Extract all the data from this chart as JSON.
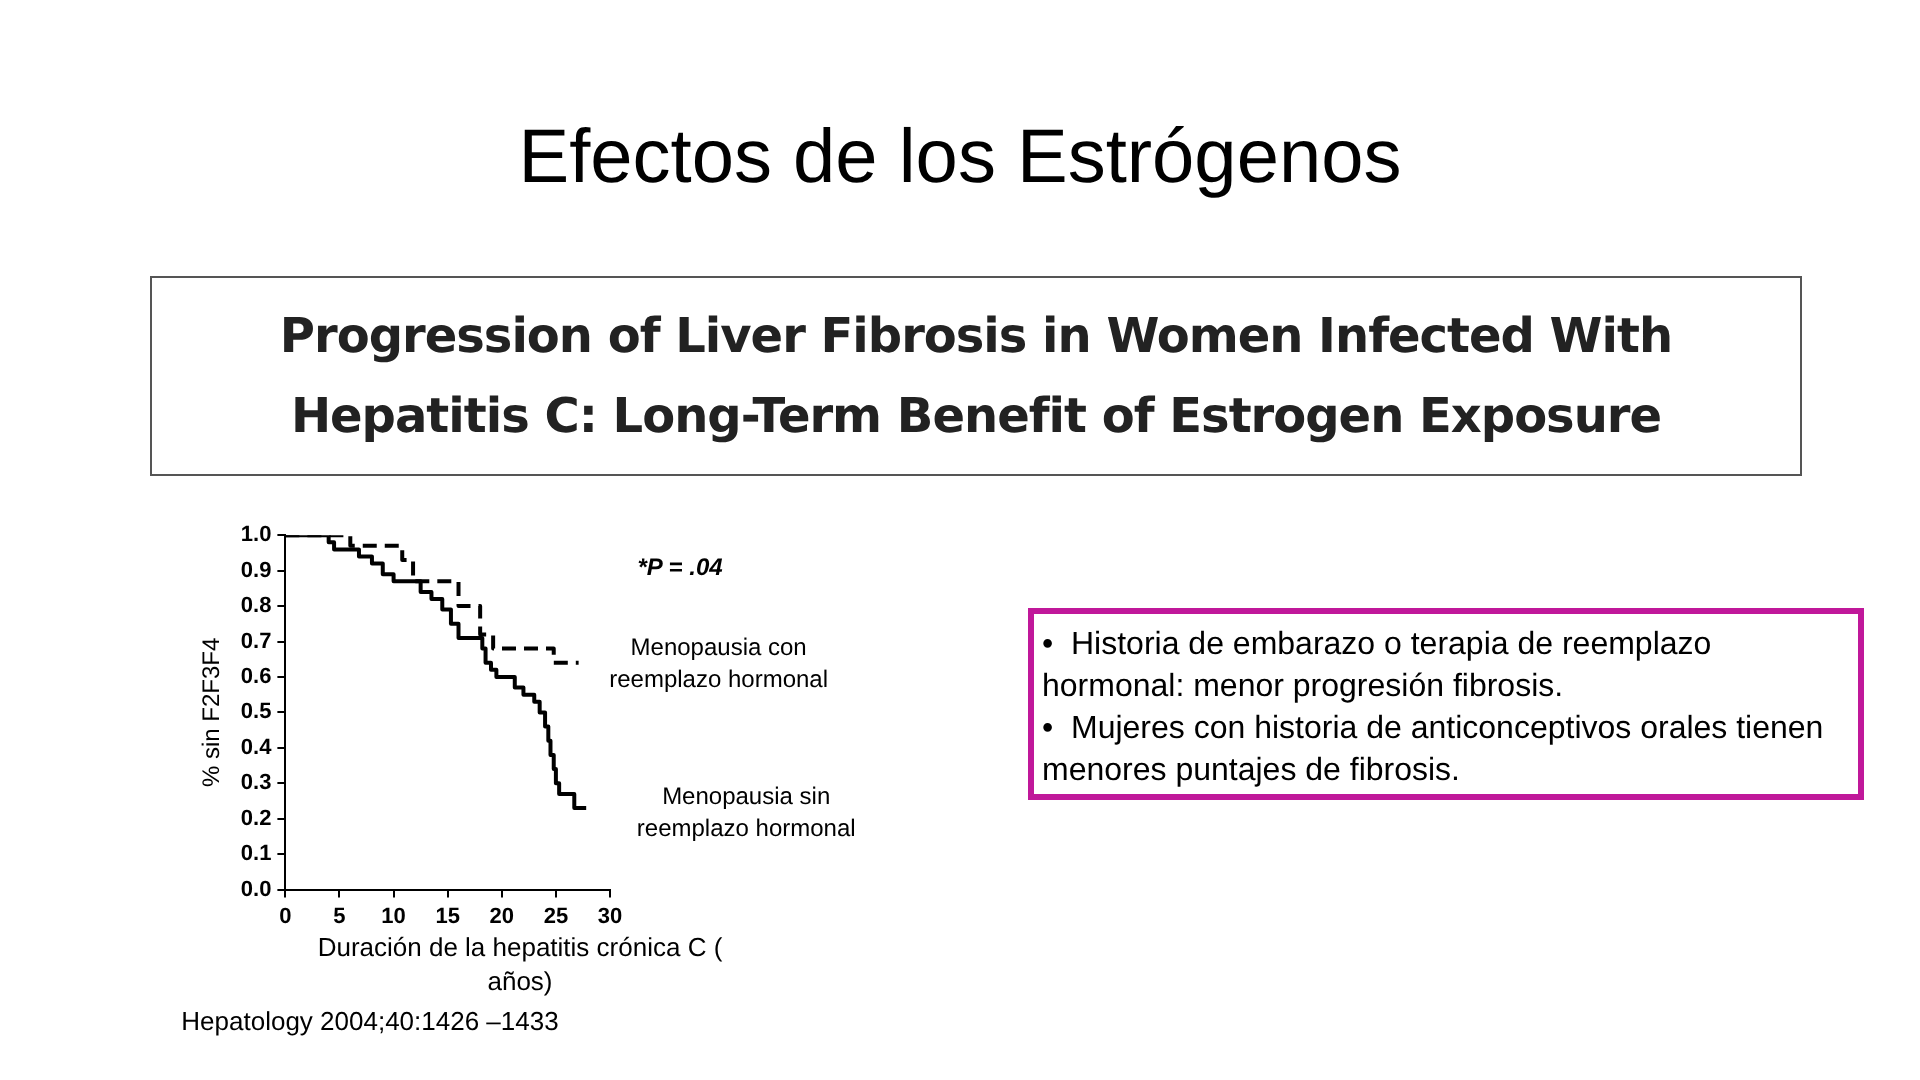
{
  "chart_data": {
    "type": "step",
    "title": "Efectos de los Estrógenos",
    "subtitle": "Progression of Liver Fibrosis in Women Infected With Hepatitis C: Long-Term Benefit of Estrogen Exposure",
    "xlabel": "Duración de la hepatitis crónica C ( años)",
    "ylabel": "% sin F2F3F4",
    "annotations": [
      "*P = .04",
      "•  Historia de embarazo o terapia de reemplazo hormonal: menor progresión fibrosis.",
      "•  Mujeres con historia de anticonceptivos orales tienen menores puntajes de fibrosis.",
      "Hepatology 2004;40:1426 –1433"
    ],
    "series": [
      {
        "name": "Menopausia con reemplazo hormonal",
        "color": "#000000",
        "line_style": "dashed",
        "x": [
          0,
          6,
          10.8,
          11.8,
          16,
          18,
          19.2,
          24.8,
          27.1
        ],
        "values": [
          1.0,
          0.97,
          0.93,
          0.87,
          0.8,
          0.72,
          0.68,
          0.64,
          0.64
        ]
      },
      {
        "name": "Menopausia sin reemplazo hormonal",
        "color": "#000000",
        "line_style": "solid",
        "x": [
          0,
          4,
          4.5,
          6.8,
          8,
          9,
          10,
          12.5,
          13.5,
          14.5,
          15.3,
          16,
          18.2,
          18.5,
          19,
          19.5,
          21.2,
          22,
          23,
          23.5,
          24,
          24.3,
          24.5,
          24.8,
          25,
          25.3,
          26.7,
          27.8
        ],
        "values": [
          1.0,
          0.98,
          0.96,
          0.94,
          0.92,
          0.89,
          0.87,
          0.84,
          0.82,
          0.79,
          0.75,
          0.71,
          0.68,
          0.64,
          0.62,
          0.6,
          0.57,
          0.55,
          0.53,
          0.5,
          0.46,
          0.42,
          0.38,
          0.34,
          0.3,
          0.27,
          0.23,
          0.23
        ]
      }
    ],
    "xlim": [
      0,
      30
    ],
    "xticks": [
      0,
      5,
      10,
      15,
      20,
      25,
      30
    ],
    "ylim": [
      0,
      1
    ],
    "yticks": [
      {
        "value": 0,
        "label": "0.0"
      },
      0.1,
      0.2,
      0.3,
      0.4,
      0.5,
      0.6,
      0.7,
      0.8,
      0.9,
      {
        "value": 1,
        "label": "1.0"
      }
    ],
    "grid": false,
    "legend": false,
    "marker": "none"
  }
}
